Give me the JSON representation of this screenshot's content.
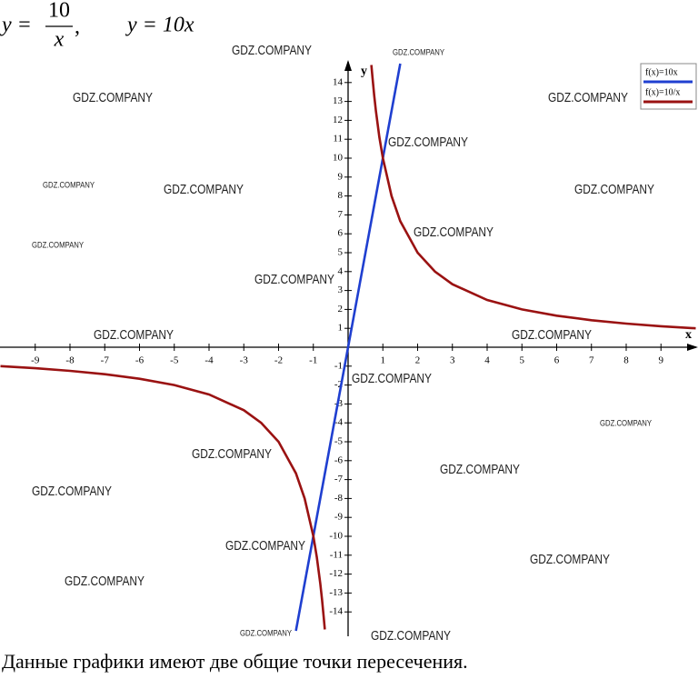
{
  "formula": {
    "lhs1": "y =",
    "num": "10",
    "den": "x",
    "sep": ",",
    "eq2": "y = 10x"
  },
  "caption": "Данные графики имеют две общие точки пересечения.",
  "watermarks": [
    "GDZ.COMPANY",
    "GDZ.COMPANY",
    "GDZ.COMPANY",
    "GDZ.COMPANY",
    "GDZ.COMPANY",
    "GDZ.COMPANY",
    "GDZ.COMPANY",
    "GDZ.COMPANY",
    "GDZ.COMPANY",
    "GDZ.COMPANY",
    "GDZ.COMPANY",
    "GDZ.COMPANY",
    "GDZ.COMPANY",
    "GDZ.COMPANY",
    "GDZ.COMPANY",
    "GDZ.COMPANY",
    "GDZ.COMPANY",
    "GDZ.COMPANY",
    "GDZ.COMPANY",
    "GDZ.COMPANY",
    "GDZ.COMPANY",
    "GDZ.COMPANY",
    "GDZ.COMPANY"
  ],
  "chart_data": {
    "type": "line",
    "xlabel": "x",
    "ylabel": "y",
    "xlim": [
      -10,
      10
    ],
    "ylim": [
      -15,
      15
    ],
    "xticks": [
      -9,
      -8,
      -7,
      -6,
      -5,
      -4,
      -3,
      -2,
      -1,
      1,
      2,
      3,
      4,
      5,
      6,
      7,
      8,
      9
    ],
    "yticks": [
      -14,
      -13,
      -12,
      -11,
      -10,
      -9,
      -8,
      -7,
      -6,
      -5,
      -4,
      -3,
      -2,
      -1,
      1,
      2,
      3,
      4,
      5,
      6,
      7,
      8,
      9,
      10,
      11,
      12,
      13,
      14
    ],
    "legend": "upper right",
    "series": [
      {
        "name": "f(x)=10x",
        "color": "#1f3fd0",
        "x": [
          -1.5,
          1.5
        ],
        "values": [
          -15,
          15
        ]
      },
      {
        "name": "f(x)=10/x",
        "color": "#9a1212",
        "x": [
          -10,
          -9,
          -8,
          -7,
          -6,
          -5,
          -4,
          -3,
          -2.5,
          -2,
          -1.5,
          -1.25,
          -1,
          -0.9,
          -0.8,
          -0.75,
          -0.7,
          -0.67,
          0,
          0.67,
          0.7,
          0.75,
          0.8,
          0.9,
          1,
          1.25,
          1.5,
          2,
          2.5,
          3,
          4,
          5,
          6,
          7,
          8,
          9,
          10
        ],
        "values": [
          -1,
          -1.11,
          -1.25,
          -1.43,
          -1.67,
          -2,
          -2.5,
          -3.33,
          -4,
          -5,
          -6.67,
          -8,
          -10,
          -11.11,
          -12.5,
          -13.33,
          -14.29,
          -14.93,
          null,
          14.93,
          14.29,
          13.33,
          12.5,
          11.11,
          10,
          8,
          6.67,
          5,
          4,
          3.33,
          2.5,
          2,
          1.67,
          1.43,
          1.25,
          1.11,
          1
        ]
      }
    ]
  }
}
